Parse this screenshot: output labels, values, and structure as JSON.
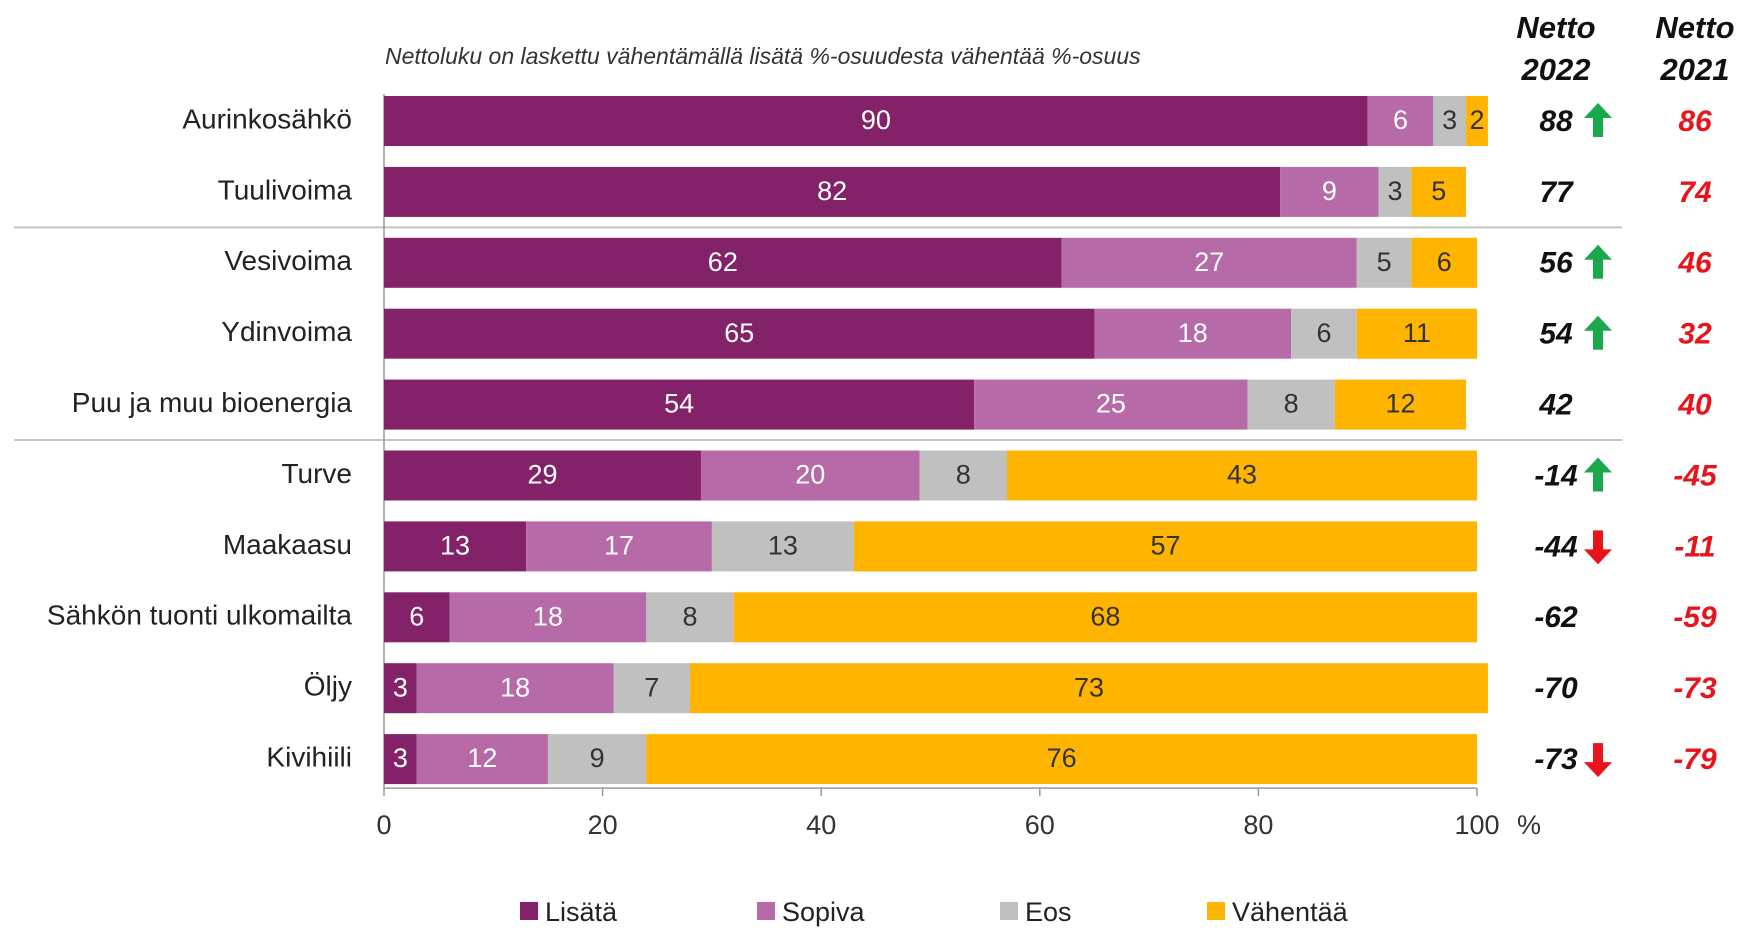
{
  "chart_data": {
    "type": "bar",
    "orientation": "horizontal",
    "stacked": true,
    "subtitle": "Nettoluku on laskettu vähentämällä lisätä %-osuudesta vähentää %-osuus",
    "x_unit": "%",
    "xlim": [
      0,
      100
    ],
    "x_ticks": [
      "0",
      "20",
      "40",
      "60",
      "80",
      "100"
    ],
    "categories": [
      "Aurinkosähkö",
      "Tuulivoima",
      "Vesivoima",
      "Ydinvoima",
      "Puu ja muu bioenergia",
      "Turve",
      "Maakaasu",
      "Sähkön tuonti ulkomailta",
      "Öljy",
      "Kivihiili"
    ],
    "group_breaks_after": [
      1,
      4
    ],
    "series": [
      {
        "name": "Lisätä",
        "color": "#832269",
        "label_color": "#ffffff",
        "values": [
          90,
          82,
          62,
          65,
          54,
          29,
          13,
          6,
          3,
          3
        ]
      },
      {
        "name": "Sopiva",
        "color": "#b76aa8",
        "label_color": "#ffffff",
        "values": [
          6,
          9,
          27,
          18,
          25,
          20,
          17,
          18,
          18,
          12
        ]
      },
      {
        "name": "Eos",
        "color": "#c0c0c0",
        "label_color": "#333333",
        "values": [
          3,
          3,
          5,
          6,
          8,
          8,
          13,
          8,
          7,
          9
        ]
      },
      {
        "name": "Vähentää",
        "color": "#ffb400",
        "label_color": "#333333",
        "values": [
          2,
          5,
          6,
          11,
          12,
          43,
          57,
          68,
          73,
          76
        ]
      }
    ],
    "netto": {
      "headers": [
        {
          "line1": "Netto",
          "line2": "2022"
        },
        {
          "line1": "Netto",
          "line2": "2021"
        }
      ],
      "values_2022": [
        "88",
        "77",
        "56",
        "54",
        "42",
        "-14",
        "-44",
        "-62",
        "-70",
        "-73"
      ],
      "values_2021": [
        "86",
        "74",
        "46",
        "32",
        "40",
        "-45",
        "-11",
        "-59",
        "-73",
        "-79"
      ],
      "trend_2022": [
        "up",
        "",
        "up",
        "up",
        "",
        "up",
        "down",
        "",
        "",
        "down"
      ],
      "color_2022": "#111111",
      "color_2021": "#e8141c",
      "up_icon": "arrow-up-icon",
      "up_color": "#1aa84c",
      "down_icon": "arrow-down-icon",
      "down_color": "#e8141c"
    }
  }
}
